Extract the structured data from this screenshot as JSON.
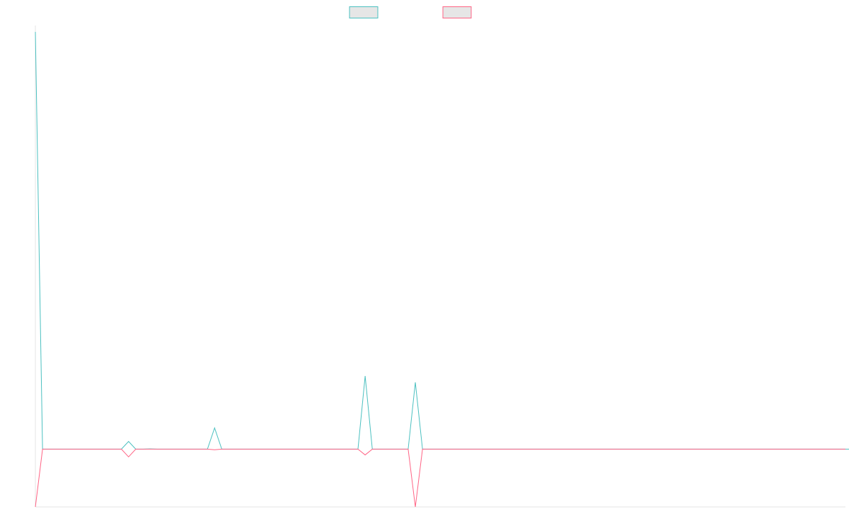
{
  "chart_data": {
    "type": "line",
    "title": "",
    "xlabel": "",
    "ylabel": "",
    "grid": false,
    "legend_position": "top-center",
    "x_count": 114,
    "ylim": [
      -9,
      66
    ],
    "series": [
      {
        "name": "",
        "color": "#4bc0c0",
        "legend_fill": "#e6e6e6",
        "values": [
          65,
          0,
          0,
          0,
          0,
          0,
          0,
          0,
          0,
          0,
          0,
          0,
          0,
          1.2,
          0,
          0,
          0.05,
          0,
          0,
          0,
          0,
          0,
          0,
          0,
          0,
          3.3,
          0,
          0,
          0,
          0,
          0,
          0,
          0,
          0,
          0,
          0,
          0,
          0,
          0,
          0,
          0,
          0,
          0,
          0,
          0,
          0,
          11.4,
          0,
          0,
          0,
          0,
          0,
          0,
          10.4,
          0,
          0,
          0,
          0,
          0,
          0,
          0,
          0,
          0,
          0,
          0,
          0,
          0,
          0,
          0,
          0,
          0,
          0,
          0,
          0,
          0,
          0,
          0,
          0,
          0,
          0,
          0,
          0,
          0,
          0,
          0,
          0,
          0,
          0,
          0,
          0,
          0,
          0,
          0,
          0,
          0,
          0,
          0,
          0,
          0,
          0,
          0,
          0,
          0,
          0,
          0,
          0,
          0,
          0,
          0,
          0,
          0,
          0,
          0,
          0,
          0
        ]
      },
      {
        "name": "",
        "color": "#ff6384",
        "legend_fill": "#e6e6e6",
        "values": [
          -9,
          0,
          0,
          0,
          0,
          0,
          0,
          0,
          0,
          0,
          0,
          0,
          0,
          -1.2,
          0,
          0,
          0,
          0,
          0,
          0,
          0,
          0,
          0,
          0,
          0,
          -0.1,
          0,
          0,
          0,
          0,
          0,
          0,
          0,
          0,
          0,
          0,
          0,
          0,
          0,
          0,
          0,
          0,
          0,
          0,
          0,
          0,
          -0.9,
          0,
          0,
          0,
          0,
          0,
          0,
          -9,
          0,
          0,
          0,
          0,
          0,
          0,
          0,
          0,
          0,
          0,
          0,
          0,
          0,
          0,
          0,
          0,
          0,
          0,
          0,
          0,
          0,
          0,
          0,
          0,
          0,
          0,
          0,
          0,
          0,
          0,
          0,
          0,
          0,
          0,
          0,
          0,
          0,
          0,
          0,
          0,
          0,
          0,
          0,
          0,
          0,
          0,
          0,
          0,
          0,
          0,
          0,
          0,
          0,
          0,
          0,
          0,
          0,
          0,
          0,
          0
        ]
      }
    ]
  }
}
